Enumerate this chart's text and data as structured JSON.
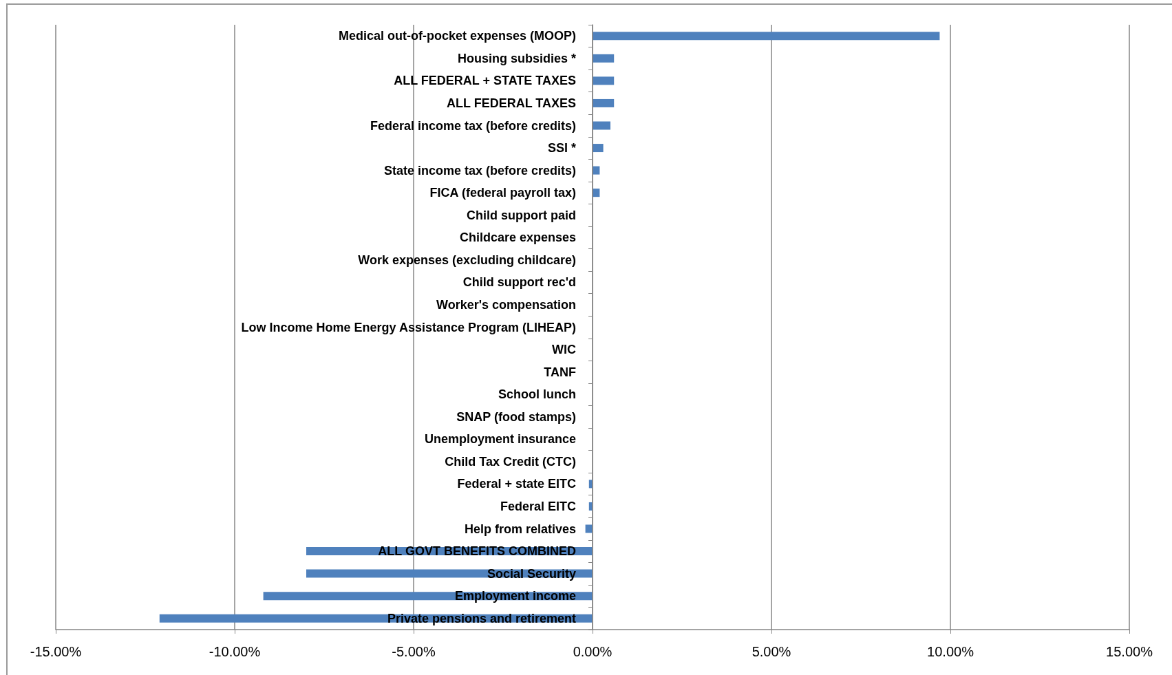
{
  "chart_data": {
    "type": "bar",
    "orientation": "horizontal",
    "categories": [
      "Medical out-of-pocket expenses (MOOP)",
      "Housing subsidies *",
      "ALL FEDERAL + STATE TAXES",
      "ALL FEDERAL TAXES",
      "Federal income tax (before credits)",
      "SSI *",
      "State income tax (before credits)",
      "FICA (federal payroll tax)",
      "Child support paid",
      "Childcare expenses",
      "Work expenses (excluding childcare)",
      "Child support rec'd",
      "Worker's compensation",
      "Low Income Home Energy Assistance Program (LIHEAP)",
      "WIC",
      "TANF",
      "School lunch",
      "SNAP (food stamps)",
      "Unemployment insurance",
      "Child Tax Credit (CTC)",
      "Federal + state EITC",
      "Federal EITC",
      "Help from relatives",
      "ALL GOVT BENEFITS COMBINED",
      "Social Security",
      "Employment income",
      "Private pensions and retirement"
    ],
    "values": [
      9.7,
      0.6,
      0.6,
      0.6,
      0.5,
      0.3,
      0.2,
      0.2,
      0,
      0,
      0,
      0,
      0,
      0,
      0,
      0,
      0,
      0,
      0,
      0,
      -0.1,
      -0.1,
      -0.2,
      -8.0,
      -8.0,
      -9.2,
      -12.1
    ],
    "color": "#4f81bd",
    "xlim": [
      -15,
      15
    ],
    "xticks": [
      {
        "value": -15,
        "label": "-15.00%"
      },
      {
        "value": -10,
        "label": "-10.00%"
      },
      {
        "value": -5,
        "label": "-5.00%"
      },
      {
        "value": 0,
        "label": "0.00%"
      },
      {
        "value": 5,
        "label": "5.00%"
      },
      {
        "value": 10,
        "label": "10.00%"
      },
      {
        "value": 15,
        "label": "15.00%"
      }
    ],
    "grid": "x"
  }
}
